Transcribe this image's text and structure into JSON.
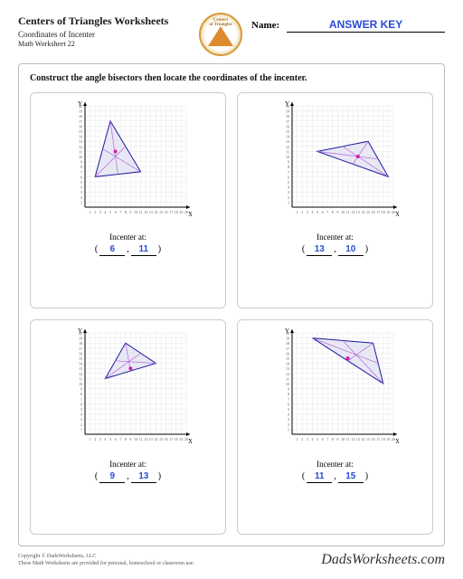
{
  "header": {
    "title": "Centers of Triangles Worksheets",
    "subtitle": "Coordinates of Incenter",
    "worksheet_num": "Math Worksheet 22",
    "badge_line1": "Centers",
    "badge_line2": "of Triangles",
    "name_label": "Name:",
    "name_value": "ANSWER KEY"
  },
  "instruction": "Construct the angle bisectors then locate the coordinates of the incenter.",
  "chart_style": {
    "bg": "#ffffff",
    "grid_color": "#e6e6e6",
    "axis_color": "#000000",
    "triangle_fill": "#e8e8f5",
    "triangle_stroke": "#1a1a9e",
    "bisector_color": "#b565d6",
    "incenter_color": "#d01caa",
    "size": 140,
    "xmax": 20,
    "ymax": 20
  },
  "problems": [
    {
      "triangle": [
        [
          2,
          6
        ],
        [
          5,
          17
        ],
        [
          11,
          7
        ]
      ],
      "incenter": [
        6,
        11
      ],
      "ans_x": "6",
      "ans_y": "11"
    },
    {
      "triangle": [
        [
          5,
          11
        ],
        [
          15,
          13
        ],
        [
          19,
          6
        ]
      ],
      "incenter": [
        13,
        10
      ],
      "ans_x": "13",
      "ans_y": "10"
    },
    {
      "triangle": [
        [
          4,
          11
        ],
        [
          8,
          18
        ],
        [
          14,
          14
        ]
      ],
      "incenter": [
        9,
        13
      ],
      "ans_x": "9",
      "ans_y": "13"
    },
    {
      "triangle": [
        [
          4,
          19
        ],
        [
          16,
          18
        ],
        [
          18,
          10
        ]
      ],
      "incenter": [
        11,
        15
      ],
      "ans_x": "11",
      "ans_y": "15"
    }
  ],
  "answer_label": "Incenter at:",
  "footer": {
    "copyright_line1": "Copyright © DadsWorksheets, LLC",
    "copyright_line2": "These Math Worksheets are provided for personal, homeschool or classroom use.",
    "site": "DadsWorksheets.com"
  }
}
